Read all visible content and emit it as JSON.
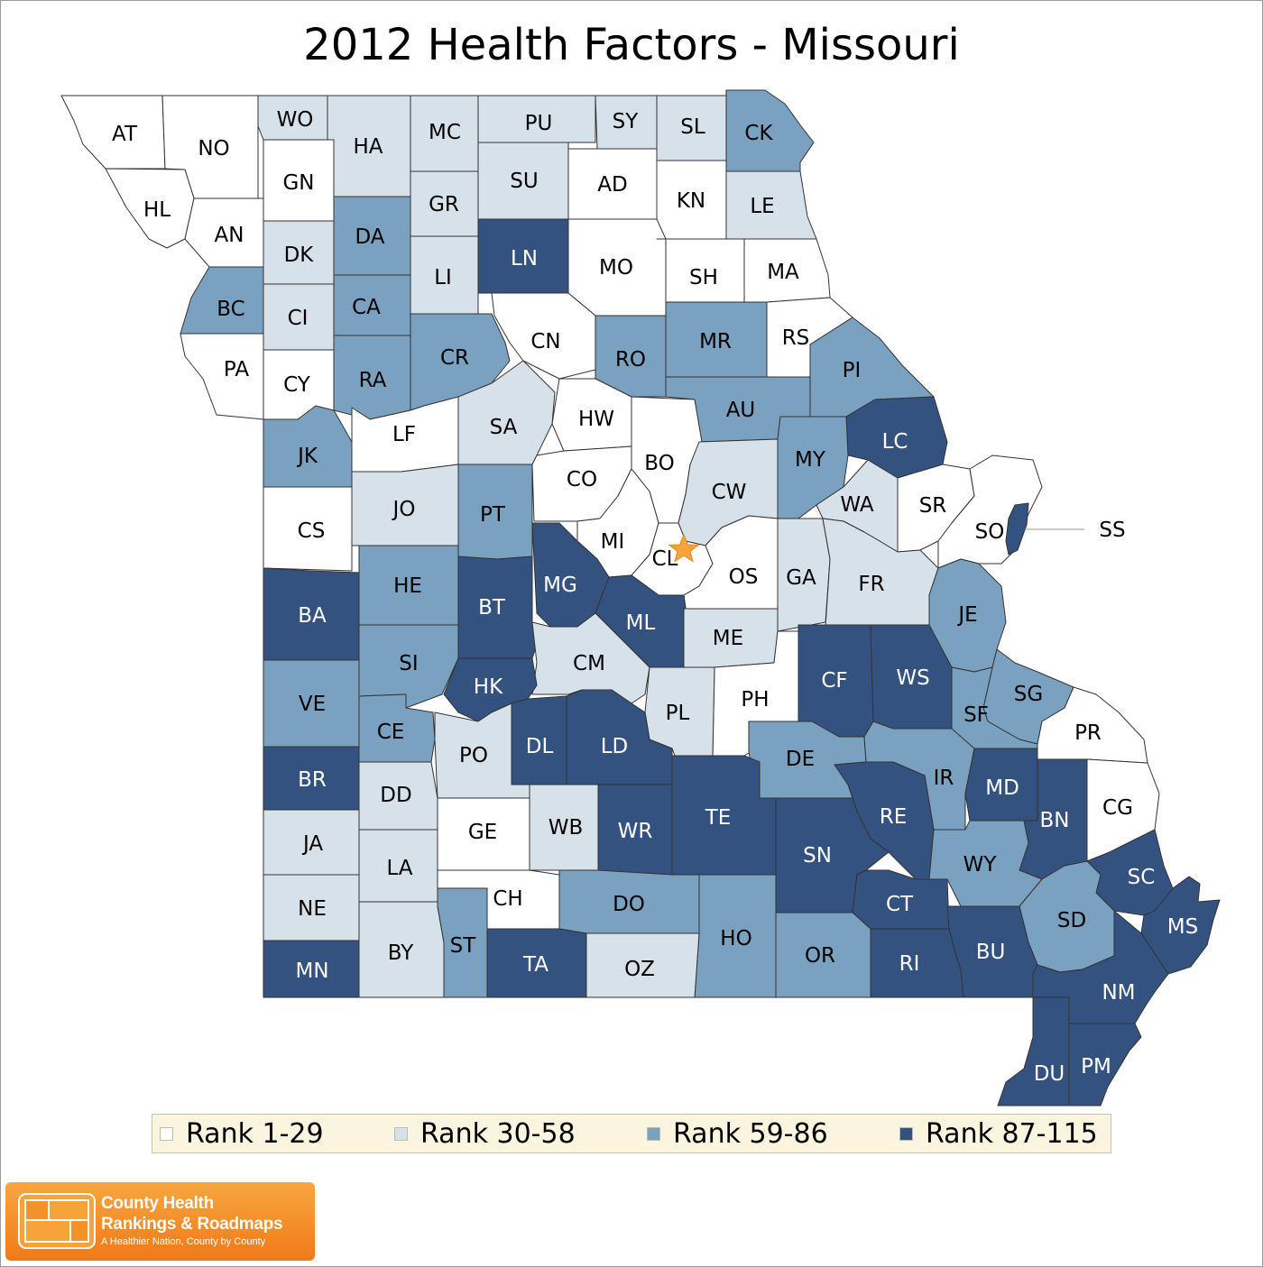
{
  "title": "2012 Health Factors - Missouri",
  "legend": [
    {
      "label": "Rank 1-29",
      "color": "#ffffff"
    },
    {
      "label": "Rank 30-58",
      "color": "#d6e1ea"
    },
    {
      "label": "Rank 59-86",
      "color": "#7aa1bf"
    },
    {
      "label": "Rank 87-115",
      "color": "#34527f"
    }
  ],
  "counties": [
    {
      "code": "AT",
      "tier": 0
    },
    {
      "code": "NO",
      "tier": 0
    },
    {
      "code": "WO",
      "tier": 1
    },
    {
      "code": "HA",
      "tier": 1
    },
    {
      "code": "MC",
      "tier": 1
    },
    {
      "code": "PU",
      "tier": 1
    },
    {
      "code": "SY",
      "tier": 1
    },
    {
      "code": "SL",
      "tier": 1
    },
    {
      "code": "CK",
      "tier": 2
    },
    {
      "code": "HL",
      "tier": 0
    },
    {
      "code": "GN",
      "tier": 0
    },
    {
      "code": "GR",
      "tier": 1
    },
    {
      "code": "SU",
      "tier": 1
    },
    {
      "code": "AD",
      "tier": 0
    },
    {
      "code": "KN",
      "tier": 0
    },
    {
      "code": "LE",
      "tier": 1
    },
    {
      "code": "AN",
      "tier": 0
    },
    {
      "code": "DK",
      "tier": 1
    },
    {
      "code": "DA",
      "tier": 2
    },
    {
      "code": "LI",
      "tier": 1
    },
    {
      "code": "LN",
      "tier": 3
    },
    {
      "code": "MO",
      "tier": 0
    },
    {
      "code": "SH",
      "tier": 0
    },
    {
      "code": "MA",
      "tier": 0
    },
    {
      "code": "BC",
      "tier": 2
    },
    {
      "code": "CI",
      "tier": 1
    },
    {
      "code": "CA",
      "tier": 2
    },
    {
      "code": "CN",
      "tier": 0
    },
    {
      "code": "RO",
      "tier": 2
    },
    {
      "code": "MR",
      "tier": 2
    },
    {
      "code": "RS",
      "tier": 0
    },
    {
      "code": "PA",
      "tier": 0
    },
    {
      "code": "CY",
      "tier": 0
    },
    {
      "code": "RA",
      "tier": 2
    },
    {
      "code": "CR",
      "tier": 2
    },
    {
      "code": "PI",
      "tier": 2
    },
    {
      "code": "HW",
      "tier": 0
    },
    {
      "code": "AU",
      "tier": 2
    },
    {
      "code": "LF",
      "tier": 0
    },
    {
      "code": "SA",
      "tier": 1
    },
    {
      "code": "LC",
      "tier": 3
    },
    {
      "code": "JK",
      "tier": 2
    },
    {
      "code": "BO",
      "tier": 0
    },
    {
      "code": "MY",
      "tier": 2
    },
    {
      "code": "CO",
      "tier": 0
    },
    {
      "code": "CW",
      "tier": 1
    },
    {
      "code": "WA",
      "tier": 1
    },
    {
      "code": "SR",
      "tier": 0
    },
    {
      "code": "JO",
      "tier": 1
    },
    {
      "code": "PT",
      "tier": 2
    },
    {
      "code": "SO",
      "tier": 0
    },
    {
      "code": "SS",
      "tier": 3
    },
    {
      "code": "CS",
      "tier": 0
    },
    {
      "code": "MI",
      "tier": 0
    },
    {
      "code": "CL",
      "tier": 0
    },
    {
      "code": "OS",
      "tier": 0
    },
    {
      "code": "GA",
      "tier": 1
    },
    {
      "code": "FR",
      "tier": 1
    },
    {
      "code": "HE",
      "tier": 2
    },
    {
      "code": "MG",
      "tier": 3
    },
    {
      "code": "BT",
      "tier": 3
    },
    {
      "code": "BA",
      "tier": 3
    },
    {
      "code": "JE",
      "tier": 2
    },
    {
      "code": "ML",
      "tier": 3
    },
    {
      "code": "ME",
      "tier": 1
    },
    {
      "code": "SI",
      "tier": 2
    },
    {
      "code": "CM",
      "tier": 1
    },
    {
      "code": "CF",
      "tier": 3
    },
    {
      "code": "WS",
      "tier": 3
    },
    {
      "code": "VE",
      "tier": 2
    },
    {
      "code": "HK",
      "tier": 3
    },
    {
      "code": "SG",
      "tier": 2
    },
    {
      "code": "PH",
      "tier": 0
    },
    {
      "code": "PL",
      "tier": 1
    },
    {
      "code": "SF",
      "tier": 2
    },
    {
      "code": "PR",
      "tier": 0
    },
    {
      "code": "CE",
      "tier": 2
    },
    {
      "code": "DL",
      "tier": 3
    },
    {
      "code": "LD",
      "tier": 3
    },
    {
      "code": "PO",
      "tier": 1
    },
    {
      "code": "DE",
      "tier": 2
    },
    {
      "code": "BR",
      "tier": 3
    },
    {
      "code": "IR",
      "tier": 2
    },
    {
      "code": "MD",
      "tier": 3
    },
    {
      "code": "DD",
      "tier": 1
    },
    {
      "code": "TE",
      "tier": 3
    },
    {
      "code": "RE",
      "tier": 3
    },
    {
      "code": "BN",
      "tier": 3
    },
    {
      "code": "CG",
      "tier": 0
    },
    {
      "code": "GE",
      "tier": 0
    },
    {
      "code": "WB",
      "tier": 1
    },
    {
      "code": "WR",
      "tier": 3
    },
    {
      "code": "JA",
      "tier": 1
    },
    {
      "code": "SN",
      "tier": 3
    },
    {
      "code": "LA",
      "tier": 1
    },
    {
      "code": "WY",
      "tier": 2
    },
    {
      "code": "SC",
      "tier": 3
    },
    {
      "code": "CH",
      "tier": 0
    },
    {
      "code": "CT",
      "tier": 3
    },
    {
      "code": "DO",
      "tier": 2
    },
    {
      "code": "NE",
      "tier": 1
    },
    {
      "code": "SD",
      "tier": 2
    },
    {
      "code": "MS",
      "tier": 3
    },
    {
      "code": "HO",
      "tier": 2
    },
    {
      "code": "BY",
      "tier": 1
    },
    {
      "code": "ST",
      "tier": 2
    },
    {
      "code": "TA",
      "tier": 3
    },
    {
      "code": "OZ",
      "tier": 1
    },
    {
      "code": "OR",
      "tier": 2
    },
    {
      "code": "RI",
      "tier": 3
    },
    {
      "code": "BU",
      "tier": 3
    },
    {
      "code": "MN",
      "tier": 3
    },
    {
      "code": "NM",
      "tier": 3
    },
    {
      "code": "DU",
      "tier": 3
    },
    {
      "code": "PM",
      "tier": 3
    }
  ],
  "capital_marker": "star",
  "logo": {
    "line1": "County Health",
    "line2": "Rankings & Roadmaps",
    "tagline": "A Healthier Nation, County by County"
  }
}
